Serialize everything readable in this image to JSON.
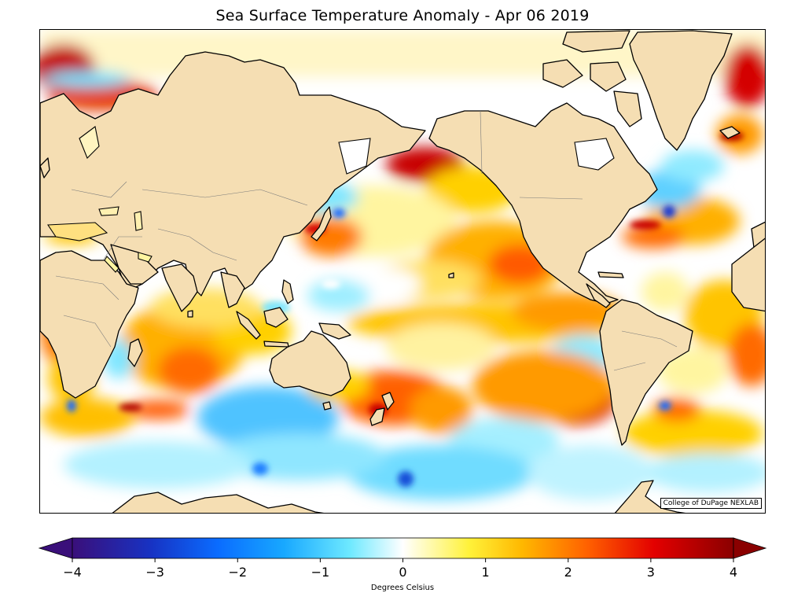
{
  "title": "Sea Surface Temperature Anomaly - Apr 06 2019",
  "credit": "College of DuPage NEXLAB",
  "colorbar": {
    "label": "Degrees Celsius",
    "min": -4,
    "max": 4,
    "ticks": [
      "−4",
      "−3",
      "−2",
      "−1",
      "0",
      "1",
      "2",
      "3",
      "4"
    ],
    "tick_values": [
      -4,
      -3,
      -2,
      -1,
      0,
      1,
      2,
      3,
      4
    ],
    "extend": "both",
    "colors": [
      "#3a0f7a",
      "#1733c4",
      "#0a6cff",
      "#18a8ff",
      "#6ee9ff",
      "#ffffff",
      "#fff23a",
      "#ffb800",
      "#ff6000",
      "#e30000",
      "#8a0000"
    ]
  },
  "map": {
    "land_color": "#f5deb3",
    "ocean_background": "#ffffff",
    "projection": "Pacific-centered cylindrical"
  }
}
